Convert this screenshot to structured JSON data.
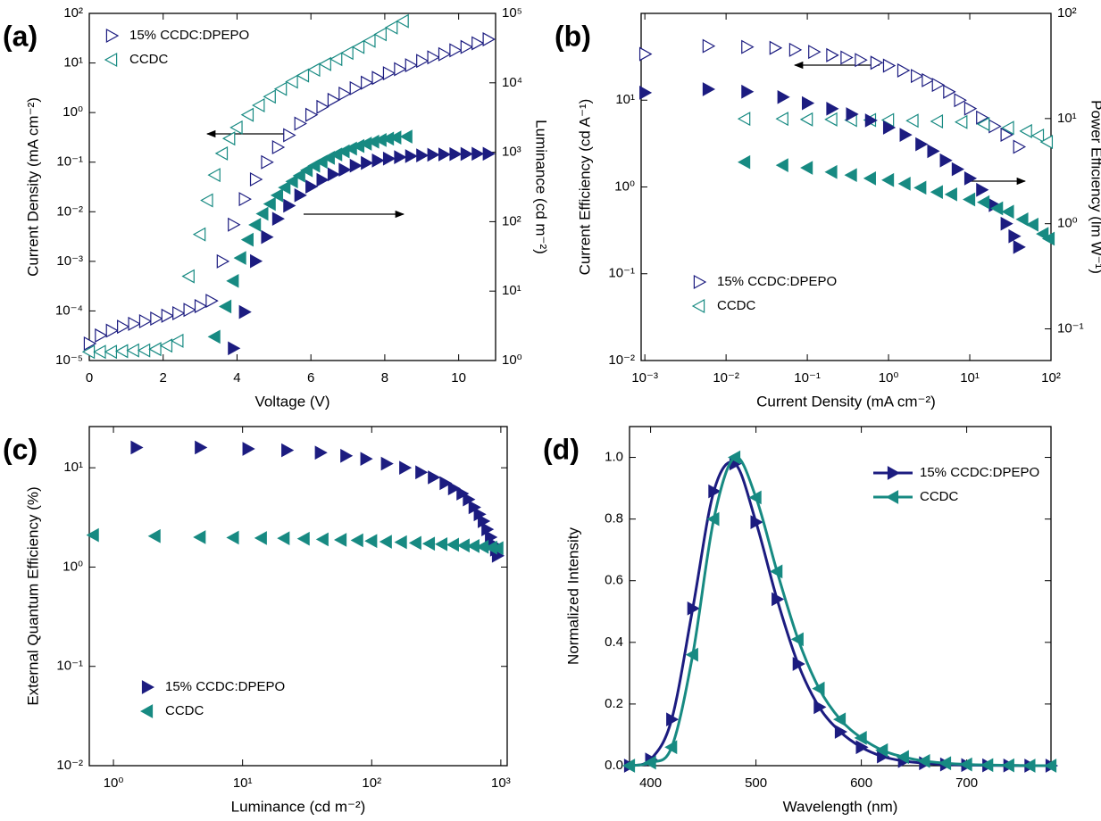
{
  "chart_data": [
    {
      "type": "scatter",
      "label": "(a)",
      "xlabel": "Voltage (V)",
      "ylabel": "Current Density (mA cm⁻²)",
      "y2label": "Luminance (cd m⁻²)",
      "xlim": [
        0,
        11
      ],
      "xticks": [
        0,
        2,
        4,
        6,
        8,
        10
      ],
      "ylog": true,
      "ylim": [
        1e-05,
        100
      ],
      "yticks": [
        {
          "value": 1e-05,
          "label": "10⁻⁵"
        },
        {
          "value": 0.0001,
          "label": "10⁻⁴"
        },
        {
          "value": 0.001,
          "label": "10⁻³"
        },
        {
          "value": 0.01,
          "label": "10⁻²"
        },
        {
          "value": 0.1,
          "label": "10⁻¹"
        },
        {
          "value": 1,
          "label": "10⁰"
        },
        {
          "value": 10,
          "label": "10¹"
        },
        {
          "value": 100,
          "label": "10²"
        }
      ],
      "y2log": true,
      "y2lim": [
        1,
        100000
      ],
      "y2ticks": [
        {
          "value": 1,
          "label": "10⁰"
        },
        {
          "value": 10,
          "label": "10¹"
        },
        {
          "value": 100,
          "label": "10²"
        },
        {
          "value": 1000,
          "label": "10³"
        },
        {
          "value": 10000,
          "label": "10⁴"
        },
        {
          "value": 100000,
          "label": "10⁵"
        }
      ],
      "legend": "upper left",
      "series": [
        {
          "name": "15% CCDC:DPEPO",
          "color": "#1c1c80",
          "marker": "triangle-right-open",
          "x": [
            0,
            0.3,
            0.6,
            0.9,
            1.2,
            1.5,
            1.8,
            2.1,
            2.4,
            2.7,
            3.0,
            3.3,
            3.6,
            3.9,
            4.2,
            4.5,
            4.8,
            5.1,
            5.4,
            5.7,
            6.0,
            6.3,
            6.6,
            6.9,
            7.2,
            7.5,
            7.8,
            8.1,
            8.4,
            8.7,
            9.0,
            9.3,
            9.6,
            9.9,
            10.2,
            10.5,
            10.8
          ],
          "values": [
            2.2e-05,
            3.2e-05,
            4e-05,
            4.8e-05,
            5.5e-05,
            6.2e-05,
            7e-05,
            8e-05,
            9e-05,
            0.000105,
            0.000125,
            0.00016,
            0.001,
            0.0055,
            0.018,
            0.045,
            0.1,
            0.2,
            0.35,
            0.6,
            0.9,
            1.3,
            1.8,
            2.4,
            3.1,
            4,
            5,
            6.2,
            7.5,
            9,
            11,
            13,
            15,
            18,
            21,
            25,
            30
          ]
        },
        {
          "name": "CCDC",
          "color": "#178a82",
          "marker": "triangle-left-open",
          "x": [
            0,
            0.3,
            0.6,
            0.9,
            1.2,
            1.5,
            1.8,
            2.1,
            2.4,
            2.7,
            3.0,
            3.2,
            3.4,
            3.6,
            3.8,
            4.0,
            4.3,
            4.6,
            4.9,
            5.2,
            5.5,
            5.8,
            6.1,
            6.4,
            6.7,
            7.0,
            7.3,
            7.6,
            7.9,
            8.2,
            8.5
          ],
          "values": [
            1.5e-05,
            1.5e-05,
            1.5e-05,
            1.55e-05,
            1.6e-05,
            1.6e-05,
            1.7e-05,
            2e-05,
            2.5e-05,
            0.0005,
            0.0035,
            0.017,
            0.055,
            0.15,
            0.3,
            0.5,
            0.9,
            1.4,
            2.1,
            3,
            4.2,
            5.6,
            7.3,
            9.5,
            12,
            16,
            21,
            28,
            38,
            52,
            70
          ]
        },
        {
          "color": "#1c1c80",
          "marker": "triangle-right",
          "axis": "y2",
          "x": [
            3.9,
            4.2,
            4.5,
            4.8,
            5.1,
            5.4,
            5.7,
            6.0,
            6.3,
            6.6,
            6.9,
            7.2,
            7.5,
            7.8,
            8.1,
            8.4,
            8.7,
            9.0,
            9.3,
            9.6,
            9.9,
            10.2,
            10.5,
            10.8
          ],
          "values": [
            1.5,
            5,
            27,
            60,
            110,
            170,
            240,
            320,
            400,
            480,
            560,
            640,
            700,
            760,
            810,
            850,
            880,
            900,
            920,
            930,
            940,
            945,
            950,
            950
          ]
        },
        {
          "color": "#178a82",
          "marker": "triangle-left",
          "axis": "y2",
          "x": [
            3.4,
            3.7,
            3.9,
            4.1,
            4.3,
            4.5,
            4.7,
            4.9,
            5.1,
            5.3,
            5.5,
            5.7,
            5.9,
            6.1,
            6.3,
            6.5,
            6.7,
            6.9,
            7.1,
            7.3,
            7.5,
            7.7,
            7.9,
            8.1,
            8.3,
            8.6
          ],
          "values": [
            2.2,
            6,
            14,
            30,
            55,
            90,
            130,
            180,
            240,
            310,
            380,
            460,
            550,
            640,
            730,
            830,
            930,
            1030,
            1130,
            1230,
            1330,
            1420,
            1500,
            1570,
            1630,
            1680
          ]
        }
      ]
    },
    {
      "type": "scatter",
      "label": "(b)",
      "xlabel": "Current Density (mA cm⁻²)",
      "ylabel": "Current Efficiency (cd A⁻¹)",
      "y2label": "Power Efficiency (lm W⁻¹)",
      "xlog": true,
      "xlim": [
        0.0009,
        100
      ],
      "xticks": [
        {
          "value": 0.001,
          "label": "10⁻³"
        },
        {
          "value": 0.01,
          "label": "10⁻²"
        },
        {
          "value": 0.1,
          "label": "10⁻¹"
        },
        {
          "value": 1,
          "label": "10⁰"
        },
        {
          "value": 10,
          "label": "10¹"
        },
        {
          "value": 100,
          "label": "10²"
        }
      ],
      "ylog": true,
      "ylim": [
        0.01,
        100
      ],
      "yticks": [
        {
          "value": 0.01,
          "label": "10⁻²"
        },
        {
          "value": 0.1,
          "label": "10⁻¹"
        },
        {
          "value": 1,
          "label": "10⁰"
        },
        {
          "value": 10,
          "label": "10¹"
        }
      ],
      "y2log": true,
      "y2lim": [
        0.05,
        100
      ],
      "y2ticks": [
        {
          "value": 0.1,
          "label": "10⁻¹"
        },
        {
          "value": 1,
          "label": "10⁰"
        },
        {
          "value": 10,
          "label": "10¹"
        },
        {
          "value": 100,
          "label": "10²"
        }
      ],
      "legend": "lower left",
      "series": [
        {
          "name": "15% CCDC:DPEPO",
          "color": "#1c1c80",
          "marker": "triangle-right-open",
          "x": [
            0.001,
            0.006,
            0.018,
            0.04,
            0.07,
            0.12,
            0.2,
            0.3,
            0.45,
            0.7,
            1,
            1.5,
            2.2,
            3,
            4,
            5.5,
            7.5,
            10,
            14,
            20,
            28,
            40
          ],
          "values": [
            34,
            42,
            41,
            40,
            38,
            36,
            33,
            31,
            29,
            27,
            25,
            22,
            19,
            17,
            15,
            12.5,
            10,
            8,
            6.3,
            5,
            4,
            2.9
          ]
        },
        {
          "name": "CCDC",
          "color": "#178a82",
          "marker": "triangle-left-open",
          "x": [
            0.017,
            0.05,
            0.1,
            0.2,
            0.35,
            0.6,
            1,
            2,
            4,
            8,
            15,
            30,
            50,
            70,
            90
          ],
          "values": [
            6.1,
            6.1,
            6,
            6,
            5.9,
            5.9,
            5.9,
            5.8,
            5.7,
            5.6,
            5.3,
            4.8,
            4.4,
            3.9,
            3.3
          ]
        },
        {
          "color": "#1c1c80",
          "marker": "triangle-right",
          "axis": "y2",
          "x": [
            0.001,
            0.006,
            0.018,
            0.05,
            0.1,
            0.2,
            0.35,
            0.6,
            1,
            1.6,
            2.5,
            3.5,
            5,
            7,
            10,
            14,
            20,
            28,
            35,
            40
          ],
          "values": [
            17.6,
            19,
            18,
            16,
            14,
            12.4,
            11,
            9.6,
            8.2,
            7,
            5.7,
            4.9,
            4,
            3.3,
            2.7,
            2.1,
            1.5,
            1,
            0.76,
            0.6
          ]
        },
        {
          "color": "#178a82",
          "marker": "triangle-left",
          "axis": "y2",
          "x": [
            0.017,
            0.05,
            0.1,
            0.2,
            0.35,
            0.6,
            1,
            1.6,
            2.5,
            4,
            6,
            10,
            15,
            22,
            30,
            45,
            60,
            80,
            95
          ],
          "values": [
            3.85,
            3.6,
            3.4,
            3.1,
            2.9,
            2.7,
            2.6,
            2.4,
            2.2,
            2,
            1.9,
            1.7,
            1.6,
            1.4,
            1.3,
            1.1,
            0.98,
            0.8,
            0.72
          ]
        }
      ]
    },
    {
      "type": "scatter",
      "label": "(c)",
      "xlabel": "Luminance (cd m⁻²)",
      "ylabel": "External Quantum Efficiency (%)",
      "xlog": true,
      "xlim": [
        0.65,
        1120
      ],
      "xticks": [
        {
          "value": 1,
          "label": "10⁰"
        },
        {
          "value": 10,
          "label": "10¹"
        },
        {
          "value": 100,
          "label": "10²"
        },
        {
          "value": 1000,
          "label": "10³"
        }
      ],
      "ylog": true,
      "ylim": [
        0.01,
        26
      ],
      "yticks": [
        {
          "value": 0.01,
          "label": "10⁻²"
        },
        {
          "value": 0.1,
          "label": "10⁻¹"
        },
        {
          "value": 1,
          "label": "10⁰"
        },
        {
          "value": 10,
          "label": "10¹"
        }
      ],
      "legend": "lower left",
      "series": [
        {
          "name": "15% CCDC:DPEPO",
          "color": "#1c1c80",
          "marker": "triangle-right",
          "x": [
            1.5,
            4.7,
            11,
            22,
            40,
            63,
            90,
            130,
            180,
            240,
            300,
            370,
            430,
            500,
            560,
            620,
            680,
            730,
            780,
            830,
            870,
            910,
            940
          ],
          "values": [
            16,
            16,
            15.5,
            15,
            14.2,
            13.2,
            12.3,
            11,
            10,
            9,
            8,
            7,
            6.2,
            5.5,
            4.8,
            4,
            3.4,
            2.9,
            2.4,
            2,
            1.7,
            1.5,
            1.3
          ]
        },
        {
          "name": "CCDC",
          "color": "#178a82",
          "marker": "triangle-left",
          "x": [
            0.7,
            2.1,
            4.7,
            8.5,
            14,
            21,
            30,
            42,
            58,
            78,
            100,
            130,
            170,
            220,
            280,
            350,
            430,
            520,
            620,
            730,
            850,
            950
          ],
          "values": [
            2.1,
            2.05,
            2,
            1.98,
            1.96,
            1.95,
            1.93,
            1.9,
            1.88,
            1.86,
            1.83,
            1.8,
            1.78,
            1.75,
            1.72,
            1.7,
            1.68,
            1.65,
            1.63,
            1.6,
            1.57,
            1.55
          ]
        }
      ]
    },
    {
      "type": "line",
      "label": "(d)",
      "xlabel": "Wavelength (nm)",
      "ylabel": "Normalized Intensity",
      "xlim": [
        380,
        780
      ],
      "xticks": [
        400,
        500,
        600,
        700
      ],
      "ylim": [
        0,
        1.1
      ],
      "yticks": [
        {
          "value": 0,
          "label": "0.0"
        },
        0.2,
        0.4,
        0.6,
        0.8,
        {
          "value": 1,
          "label": "1.0"
        }
      ],
      "legend": "upper right",
      "series": [
        {
          "name": "15% CCDC:DPEPO",
          "color": "#1c1c80",
          "marker": "triangle-right",
          "x": [
            380,
            400,
            420,
            440,
            460,
            480,
            500,
            520,
            540,
            560,
            580,
            600,
            620,
            640,
            660,
            680,
            700,
            720,
            740,
            760,
            780
          ],
          "values": [
            0,
            0.02,
            0.15,
            0.51,
            0.89,
            0.98,
            0.79,
            0.54,
            0.33,
            0.19,
            0.11,
            0.06,
            0.03,
            0.015,
            0.008,
            0.004,
            0.002,
            0.001,
            0.0005,
            0,
            0
          ]
        },
        {
          "name": "CCDC",
          "color": "#178a82",
          "marker": "triangle-left",
          "x": [
            380,
            400,
            420,
            440,
            460,
            480,
            500,
            520,
            540,
            560,
            580,
            600,
            620,
            640,
            660,
            680,
            700,
            720,
            740,
            760,
            780
          ],
          "values": [
            0,
            0.01,
            0.06,
            0.36,
            0.8,
            1.0,
            0.87,
            0.63,
            0.41,
            0.25,
            0.15,
            0.09,
            0.05,
            0.028,
            0.015,
            0.008,
            0.004,
            0.002,
            0.001,
            0,
            0
          ]
        }
      ]
    }
  ]
}
